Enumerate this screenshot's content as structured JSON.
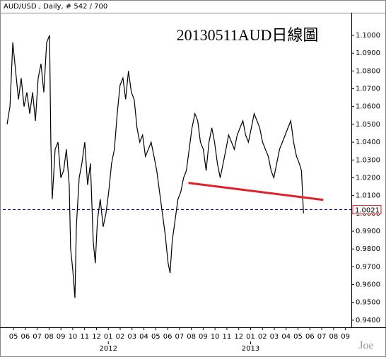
{
  "chart_data": {
    "type": "line",
    "title": "20130511AUD日線圖",
    "subtitle": "AUD/USD , Daily, # 542 / 700",
    "watermark": "Joe",
    "x": [
      -0.54,
      -0.3,
      -0.06,
      0.18,
      0.42,
      0.65,
      0.89,
      1.13,
      1.37,
      1.61,
      1.85,
      2.08,
      2.32,
      2.56,
      2.8,
      3.04,
      3.15,
      3.27,
      3.51,
      3.75,
      3.99,
      4.23,
      4.46,
      4.7,
      4.82,
      5.0,
      5.18,
      5.3,
      5.54,
      5.77,
      6.01,
      6.25,
      6.49,
      6.73,
      6.9,
      7.08,
      7.32,
      7.56,
      7.8,
      8.04,
      8.27,
      8.51,
      8.75,
      8.99,
      9.23,
      9.46,
      9.7,
      9.94,
      10.18,
      10.42,
      10.65,
      10.89,
      11.13,
      11.37,
      11.61,
      11.85,
      12.08,
      12.32,
      12.56,
      12.8,
      13.04,
      13.21,
      13.39,
      13.63,
      13.87,
      14.11,
      14.35,
      14.58,
      14.82,
      15.06,
      15.3,
      15.54,
      15.77,
      16.01,
      16.25,
      16.49,
      16.73,
      16.96,
      17.2,
      17.44,
      17.68,
      17.92,
      18.15,
      18.39,
      18.63,
      18.87,
      19.11,
      19.35,
      19.58,
      19.82,
      20.06,
      20.3,
      20.54,
      20.77,
      21.01,
      21.25,
      21.49,
      21.73,
      21.96,
      22.2,
      22.44,
      22.68,
      22.92,
      23.15,
      23.39,
      23.63,
      23.87,
      24.11,
      24.29,
      24.46
    ],
    "series": [
      {
        "name": "AUD/USD",
        "color": "#000000",
        "values": [
          1.05,
          1.06,
          1.096,
          1.08,
          1.064,
          1.076,
          1.06,
          1.068,
          1.056,
          1.068,
          1.052,
          1.076,
          1.084,
          1.068,
          1.096,
          1.1,
          1.04,
          1.008,
          1.036,
          1.04,
          1.02,
          1.024,
          1.036,
          1.016,
          0.98,
          0.9685,
          0.9525,
          0.9925,
          1.02,
          1.028,
          1.04,
          1.016,
          1.028,
          0.984,
          0.972,
          0.996,
          1.008,
          0.9925,
          1.0,
          1.0125,
          1.028,
          1.036,
          1.056,
          1.072,
          1.076,
          1.064,
          1.08,
          1.068,
          1.064,
          1.048,
          1.04,
          1.044,
          1.032,
          1.036,
          1.04,
          1.032,
          1.024,
          1.012,
          1.0,
          0.988,
          0.972,
          0.9665,
          0.9845,
          0.996,
          1.008,
          1.012,
          1.02,
          1.024,
          1.036,
          1.048,
          1.056,
          1.052,
          1.04,
          1.036,
          1.024,
          1.04,
          1.048,
          1.04,
          1.028,
          1.02,
          1.028,
          1.036,
          1.044,
          1.04,
          1.036,
          1.044,
          1.048,
          1.052,
          1.044,
          1.04,
          1.048,
          1.056,
          1.052,
          1.048,
          1.04,
          1.036,
          1.032,
          1.024,
          1.02,
          1.028,
          1.036,
          1.04,
          1.044,
          1.048,
          1.052,
          1.04,
          1.032,
          1.028,
          1.024,
          1.0
        ]
      }
    ],
    "xlim": [
      -0.9,
      28.5
    ],
    "xticks": [
      {
        "value": 0,
        "label": "05"
      },
      {
        "value": 1,
        "label": "06"
      },
      {
        "value": 2,
        "label": "07"
      },
      {
        "value": 3,
        "label": "08"
      },
      {
        "value": 4,
        "label": "09"
      },
      {
        "value": 5,
        "label": "10"
      },
      {
        "value": 6,
        "label": "11"
      },
      {
        "value": 7,
        "label": "12"
      },
      {
        "value": 8,
        "label": "01"
      },
      {
        "value": 9,
        "label": "02"
      },
      {
        "value": 10,
        "label": "03"
      },
      {
        "value": 11,
        "label": "04"
      },
      {
        "value": 12,
        "label": "05"
      },
      {
        "value": 13,
        "label": "06"
      },
      {
        "value": 14,
        "label": "07"
      },
      {
        "value": 15,
        "label": "08"
      },
      {
        "value": 16,
        "label": "09"
      },
      {
        "value": 17,
        "label": "10"
      },
      {
        "value": 18,
        "label": "11"
      },
      {
        "value": 19,
        "label": "12"
      },
      {
        "value": 20,
        "label": "01"
      },
      {
        "value": 21,
        "label": "02"
      },
      {
        "value": 22,
        "label": "03"
      },
      {
        "value": 23,
        "label": "04"
      },
      {
        "value": 24,
        "label": "05"
      },
      {
        "value": 25,
        "label": "06"
      },
      {
        "value": 26,
        "label": "07"
      },
      {
        "value": 27,
        "label": "08"
      },
      {
        "value": 28,
        "label": "09"
      }
    ],
    "year_ticks": [
      {
        "value": 8,
        "label": "2012"
      },
      {
        "value": 20,
        "label": "2013"
      }
    ],
    "ylim": [
      0.936,
      1.1127
    ],
    "yticks": [
      {
        "value": 0.94,
        "label": "0.9400"
      },
      {
        "value": 0.95,
        "label": "0.9500"
      },
      {
        "value": 0.96,
        "label": "0.9600"
      },
      {
        "value": 0.97,
        "label": "0.9700"
      },
      {
        "value": 0.98,
        "label": "0.9800"
      },
      {
        "value": 0.99,
        "label": "0.9900"
      },
      {
        "value": 1.0,
        "label": "1.0000"
      },
      {
        "value": 1.01,
        "label": "1.0100"
      },
      {
        "value": 1.02,
        "label": "1.0200"
      },
      {
        "value": 1.03,
        "label": "1.0300"
      },
      {
        "value": 1.04,
        "label": "1.0400"
      },
      {
        "value": 1.05,
        "label": "1.0500"
      },
      {
        "value": 1.06,
        "label": "1.0600"
      },
      {
        "value": 1.07,
        "label": "1.0700"
      },
      {
        "value": 1.08,
        "label": "1.0800"
      },
      {
        "value": 1.09,
        "label": "1.0900"
      },
      {
        "value": 1.1,
        "label": "1.1000"
      }
    ],
    "price_line": {
      "value": 1.0021,
      "label": "1.0021",
      "color": "#0000cc"
    },
    "trendline": {
      "x": [
        14.76,
        26.13
      ],
      "y": [
        1.0171,
        1.0076
      ],
      "color": "#e0202a"
    }
  }
}
